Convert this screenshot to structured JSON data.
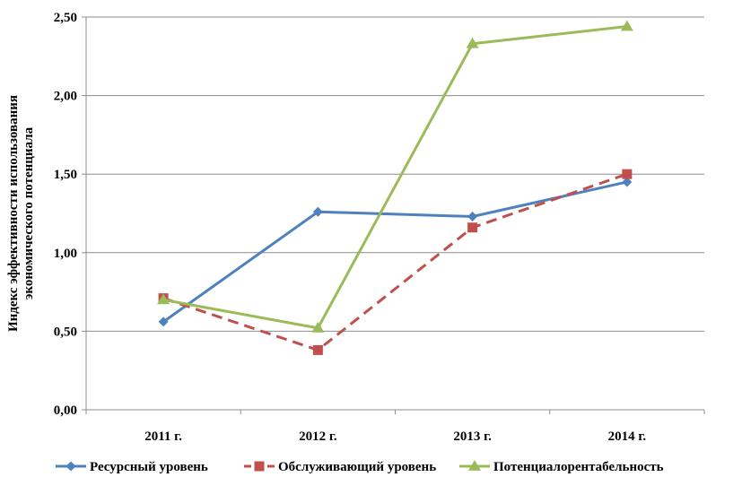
{
  "chart_data": {
    "type": "line",
    "categories": [
      "2011 г.",
      "2012 г.",
      "2013 г.",
      "2014 г."
    ],
    "series": [
      {
        "name": "Ресурсный уровень",
        "values": [
          0.56,
          1.26,
          1.23,
          1.45
        ],
        "color": "#4F81BD",
        "marker": "diamond",
        "dash": "solid"
      },
      {
        "name": "Обслуживающий уровень",
        "values": [
          0.71,
          0.38,
          1.16,
          1.5
        ],
        "color": "#C0504D",
        "marker": "square",
        "dash": "dashed"
      },
      {
        "name": "Потенциалорентабельность",
        "values": [
          0.7,
          0.52,
          2.33,
          2.44
        ],
        "color": "#9BBB59",
        "marker": "triangle",
        "dash": "solid"
      }
    ],
    "yticks": [
      "0,00",
      "0,50",
      "1,00",
      "1,50",
      "2,00",
      "2,50"
    ],
    "ylim": [
      0,
      2.5
    ],
    "ylabel_lines": [
      "Индекс  эффективности  использования",
      "экономического потенциала"
    ],
    "title": "",
    "xlabel": "",
    "grid": "horizontal",
    "legend_position": "bottom"
  }
}
